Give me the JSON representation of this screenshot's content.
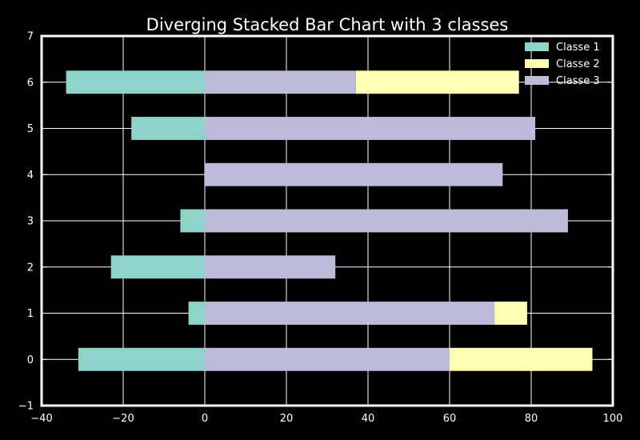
{
  "chart_data": {
    "type": "bar",
    "orientation": "horizontal",
    "stacked": true,
    "diverging": true,
    "title": "Diverging Stacked Bar Chart with 3 classes",
    "xlabel": "",
    "ylabel": "",
    "xlim": [
      -40,
      100
    ],
    "ylim": [
      -1,
      7
    ],
    "xticks": [
      "−40",
      "−20",
      "0",
      "20",
      "40",
      "60",
      "80",
      "100"
    ],
    "xtick_values": [
      -40,
      -20,
      0,
      20,
      40,
      60,
      80,
      100
    ],
    "yticks": [
      "−1",
      "0",
      "1",
      "2",
      "3",
      "4",
      "5",
      "6",
      "7"
    ],
    "ytick_values": [
      -1,
      0,
      1,
      2,
      3,
      4,
      5,
      6,
      7
    ],
    "categories": [
      0,
      1,
      2,
      3,
      4,
      5,
      6
    ],
    "grid": true,
    "legend_position": "top-right",
    "background": "#000000",
    "series": [
      {
        "name": "Classe 1",
        "color": "#8dd3c7",
        "values": [
          -31,
          -4,
          -23,
          -6,
          0,
          -18,
          -34
        ]
      },
      {
        "name": "Classe 3",
        "color": "#bebada",
        "values": [
          60,
          71,
          32,
          89,
          73,
          81,
          37
        ]
      },
      {
        "name": "Classe 2",
        "color": "#ffffb3",
        "values": [
          35,
          8,
          0,
          0,
          0,
          0,
          40
        ]
      }
    ],
    "legend": [
      {
        "name": "Classe 1",
        "color": "#8dd3c7"
      },
      {
        "name": "Classe 2",
        "color": "#ffffb3"
      },
      {
        "name": "Classe 3",
        "color": "#bebada"
      }
    ]
  }
}
